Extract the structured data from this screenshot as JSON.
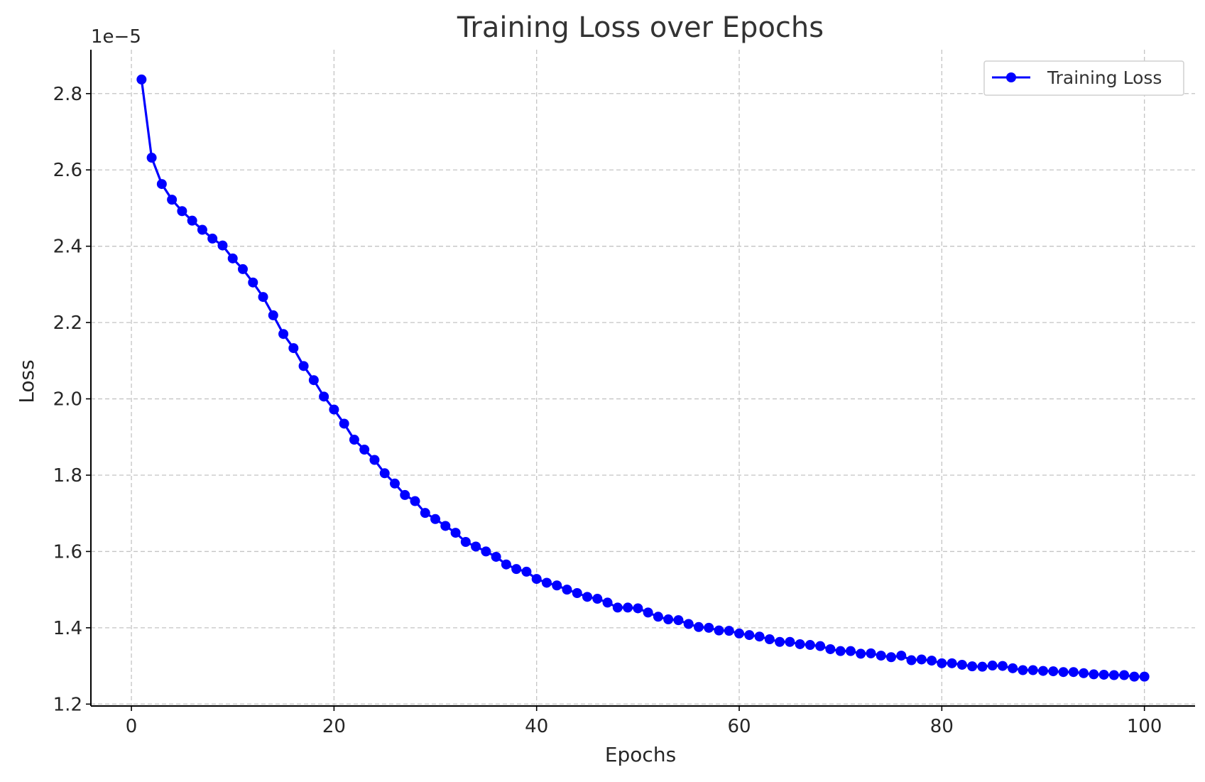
{
  "chart_data": {
    "type": "line",
    "title": "Training Loss over Epochs",
    "xlabel": "Epochs",
    "ylabel": "Loss",
    "y_offset_label": "1e−5",
    "xlim": [
      -4,
      105
    ],
    "ylim": [
      1.195,
      2.915
    ],
    "xticks": [
      0,
      20,
      40,
      60,
      80,
      100
    ],
    "xtick_labels": [
      "0",
      "20",
      "40",
      "60",
      "80",
      "100"
    ],
    "yticks": [
      1.2,
      1.4,
      1.6,
      1.8,
      2.0,
      2.2,
      2.4,
      2.6,
      2.8
    ],
    "ytick_labels": [
      "1.2",
      "1.4",
      "1.6",
      "1.8",
      "2.0",
      "2.2",
      "2.4",
      "2.6",
      "2.8"
    ],
    "grid": true,
    "legend_position": "top-right",
    "series": [
      {
        "name": "Training Loss",
        "color": "#0000ff",
        "marker": "circle",
        "x": [
          1,
          2,
          3,
          4,
          5,
          6,
          7,
          8,
          9,
          10,
          11,
          12,
          13,
          14,
          15,
          16,
          17,
          18,
          19,
          20,
          21,
          22,
          23,
          24,
          25,
          26,
          27,
          28,
          29,
          30,
          31,
          32,
          33,
          34,
          35,
          36,
          37,
          38,
          39,
          40,
          41,
          42,
          43,
          44,
          45,
          46,
          47,
          48,
          49,
          50,
          51,
          52,
          53,
          54,
          55,
          56,
          57,
          58,
          59,
          60,
          61,
          62,
          63,
          64,
          65,
          66,
          67,
          68,
          69,
          70,
          71,
          72,
          73,
          74,
          75,
          76,
          77,
          78,
          79,
          80,
          81,
          82,
          83,
          84,
          85,
          86,
          87,
          88,
          89,
          90,
          91,
          92,
          93,
          94,
          95,
          96,
          97,
          98,
          99,
          100
        ],
        "values": [
          2.837,
          2.632,
          2.563,
          2.522,
          2.492,
          2.467,
          2.443,
          2.42,
          2.402,
          2.368,
          2.34,
          2.305,
          2.267,
          2.219,
          2.17,
          2.133,
          2.086,
          2.049,
          2.006,
          1.972,
          1.935,
          1.893,
          1.867,
          1.84,
          1.805,
          1.778,
          1.748,
          1.732,
          1.701,
          1.685,
          1.667,
          1.649,
          1.625,
          1.613,
          1.6,
          1.586,
          1.566,
          1.554,
          1.547,
          1.528,
          1.518,
          1.511,
          1.5,
          1.491,
          1.481,
          1.476,
          1.466,
          1.453,
          1.453,
          1.451,
          1.44,
          1.429,
          1.422,
          1.42,
          1.41,
          1.402,
          1.4,
          1.393,
          1.392,
          1.385,
          1.381,
          1.377,
          1.37,
          1.363,
          1.363,
          1.357,
          1.355,
          1.352,
          1.344,
          1.339,
          1.339,
          1.332,
          1.333,
          1.327,
          1.323,
          1.327,
          1.315,
          1.317,
          1.314,
          1.307,
          1.307,
          1.303,
          1.299,
          1.298,
          1.301,
          1.3,
          1.294,
          1.289,
          1.289,
          1.287,
          1.286,
          1.284,
          1.284,
          1.281,
          1.278,
          1.277,
          1.276,
          1.276,
          1.272,
          1.272
        ]
      }
    ]
  }
}
